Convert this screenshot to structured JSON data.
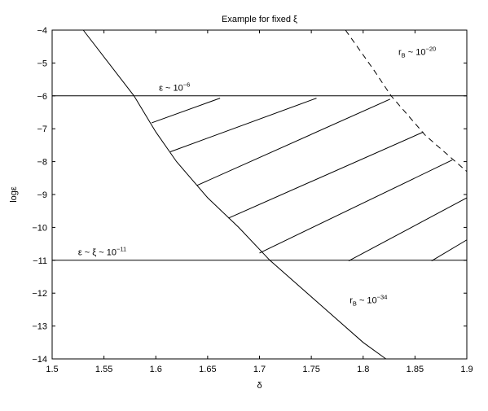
{
  "chart_data": {
    "type": "line",
    "title": "Example for fixed ξ",
    "xlabel": "δ",
    "ylabel": "logε",
    "xlim": [
      1.5,
      1.9
    ],
    "ylim": [
      -14,
      -4
    ],
    "xticks": [
      1.5,
      1.55,
      1.6,
      1.65,
      1.7,
      1.75,
      1.8,
      1.85,
      1.9
    ],
    "xtick_labels": [
      "1.5",
      "1.55",
      "1.6",
      "1.65",
      "1.7",
      "1.75",
      "1.8",
      "1.85",
      "1.9"
    ],
    "yticks": [
      -4,
      -5,
      -6,
      -7,
      -8,
      -9,
      -10,
      -11,
      -12,
      -13,
      -14
    ],
    "ytick_labels": [
      "−4",
      "−5",
      "−6",
      "−7",
      "−8",
      "−9",
      "−10",
      "−11",
      "−12",
      "−13",
      "−14"
    ],
    "grid": false,
    "colors": {
      "line": "#000000"
    },
    "curves": [
      {
        "style": "solid",
        "x": [
          1.53,
          1.579,
          1.6,
          1.62,
          1.65,
          1.68,
          1.71,
          1.8,
          1.822
        ],
        "y": [
          -4,
          -6,
          -7.1,
          -8,
          -9.1,
          -10,
          -11,
          -13.5,
          -14
        ]
      },
      {
        "style": "dashed",
        "x": [
          1.783,
          1.81,
          1.827,
          1.86,
          1.9
        ],
        "y": [
          -4,
          -5.2,
          -6,
          -7.2,
          -8.3
        ]
      }
    ],
    "hlines": [
      {
        "y": -6,
        "x": [
          1.5,
          1.9
        ]
      },
      {
        "y": -11,
        "x": [
          1.5,
          1.9
        ]
      }
    ],
    "hatch_lines": [
      {
        "x": [
          1.596,
          1.662
        ],
        "y": [
          -6.82,
          -6.07
        ]
      },
      {
        "x": [
          1.614,
          1.755
        ],
        "y": [
          -7.7,
          -6.07
        ]
      },
      {
        "x": [
          1.64,
          1.826
        ],
        "y": [
          -8.72,
          -6.1
        ]
      },
      {
        "x": [
          1.67,
          1.858
        ],
        "y": [
          -9.72,
          -7.1
        ]
      },
      {
        "x": [
          1.7,
          1.886
        ],
        "y": [
          -10.78,
          -7.95
        ]
      },
      {
        "x": [
          1.786,
          1.9
        ],
        "y": [
          -11.02,
          -9.1
        ]
      },
      {
        "x": [
          1.866,
          1.9
        ],
        "y": [
          -11.02,
          -10.38
        ]
      }
    ],
    "annotations": [
      {
        "x": 1.603,
        "y": -5.85,
        "base": "ε ~ 10",
        "sup": "−6",
        "sub": "",
        "tail": ""
      },
      {
        "x": 1.525,
        "y": -10.85,
        "base": "ε ~ ξ ~ 10",
        "sup": "−11",
        "sub": "",
        "tail": ""
      },
      {
        "x": 1.834,
        "y": -4.75,
        "base": "r",
        "sub": "B",
        "tail": "~ 10",
        "sup": "−20"
      },
      {
        "x": 1.787,
        "y": -12.3,
        "base": "r",
        "sub": "B",
        "tail": "~ 10",
        "sup": "−34"
      }
    ]
  }
}
